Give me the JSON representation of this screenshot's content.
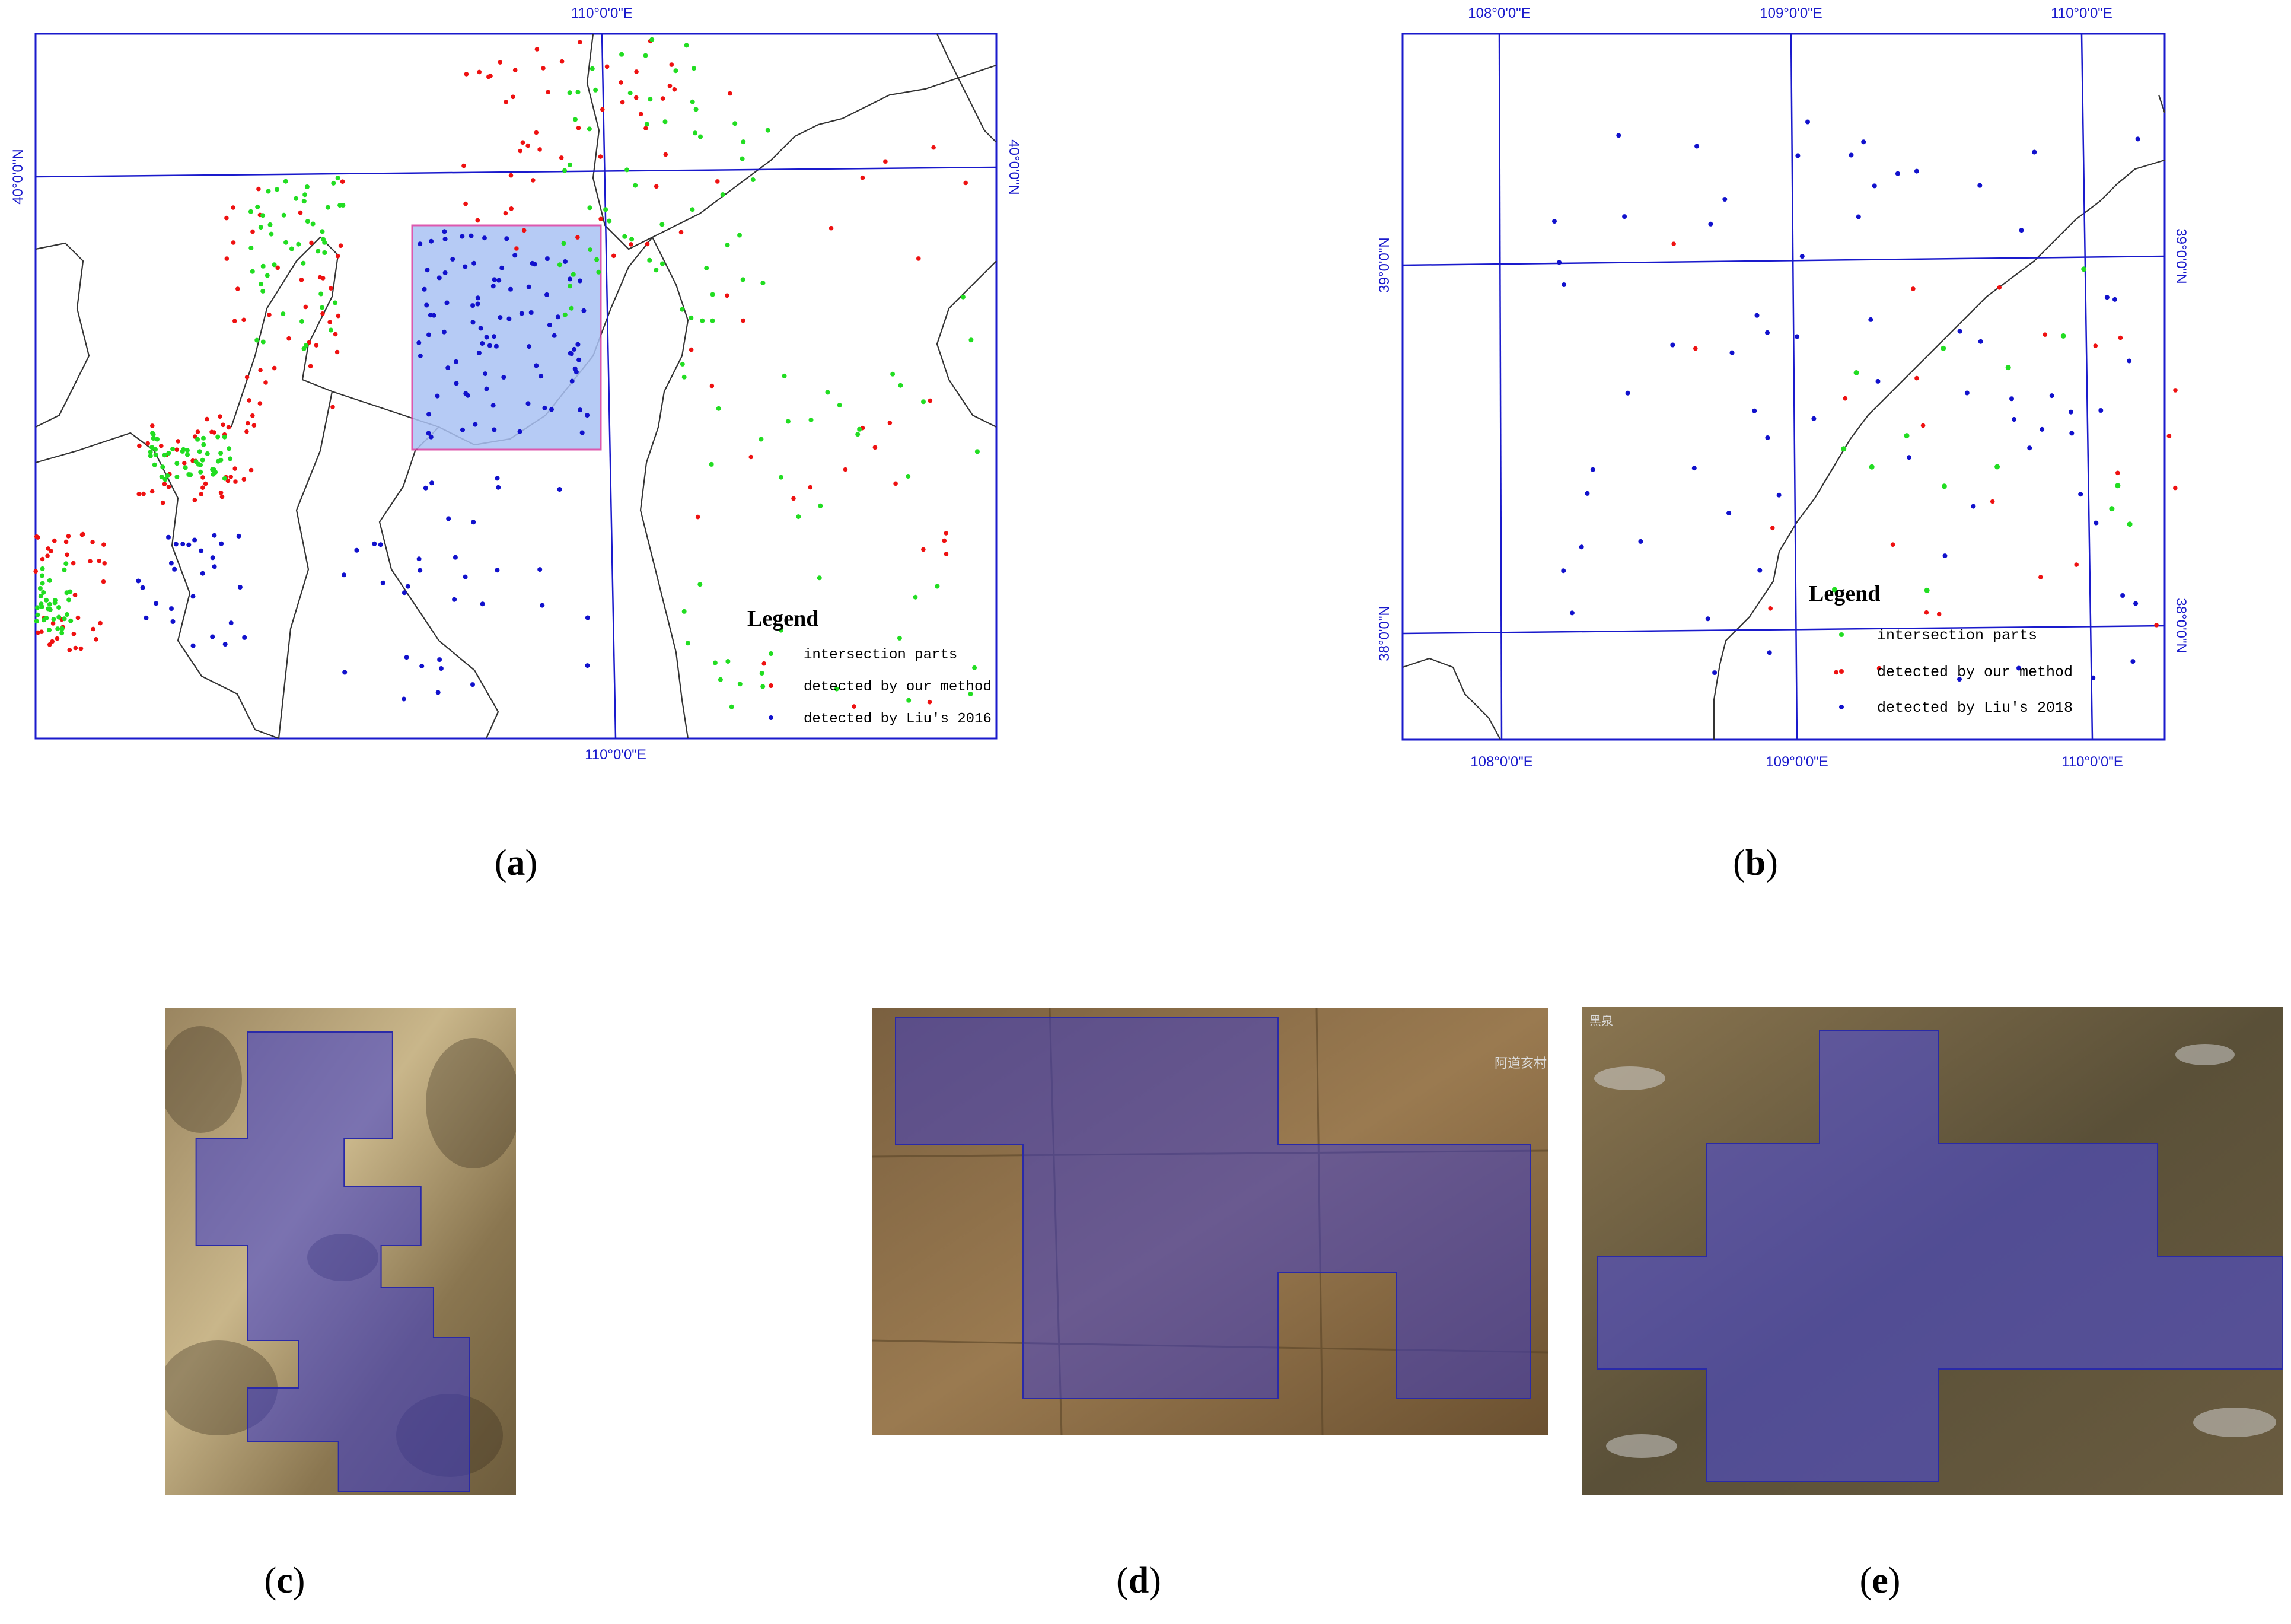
{
  "panel_a": {
    "label": "a",
    "grid_labels": {
      "top_lon": "110°0'0\"E",
      "bottom_lon": "110°0'0\"E",
      "left_lat": "40°0'0\"N",
      "right_lat": "40°0'0\"N"
    },
    "legend": {
      "title": "Legend",
      "items": [
        {
          "label": "intersection parts",
          "color": "#22dd22"
        },
        {
          "label": "detected by our method",
          "color": "#ee1111"
        },
        {
          "label": "detected by Liu's 2016",
          "color": "#1111cc"
        }
      ]
    },
    "highlight_color": "#aac2f4",
    "highlight_border": "#d63ca0"
  },
  "panel_b": {
    "label": "b",
    "grid_labels": {
      "top_lon": [
        "108°0'0\"E",
        "109°0'0\"E",
        "110°0'0\"E"
      ],
      "bottom_lon": [
        "108°0'0\"E",
        "109°0'0\"E",
        "110°0'0\"E"
      ],
      "left_lat": [
        "39°0'0\"N",
        "38°0'0\"N"
      ],
      "right_lat": [
        "39°0'0\"N",
        "38°0'0\"N"
      ]
    },
    "legend": {
      "title": "Legend",
      "items": [
        {
          "label": "intersection parts",
          "color": "#22dd22"
        },
        {
          "label": "detected by our method",
          "color": "#ee1111"
        },
        {
          "label": "detected by Liu's 2018",
          "color": "#1111cc"
        }
      ]
    }
  },
  "panel_c": {
    "label": "c"
  },
  "panel_d": {
    "label": "d",
    "place_text": "阿道亥村"
  },
  "panel_e": {
    "label": "e",
    "place_text": "黑泉"
  },
  "colors": {
    "grid": "#1a1acc",
    "border": "#333333",
    "overlay": "#3a3ad0"
  }
}
